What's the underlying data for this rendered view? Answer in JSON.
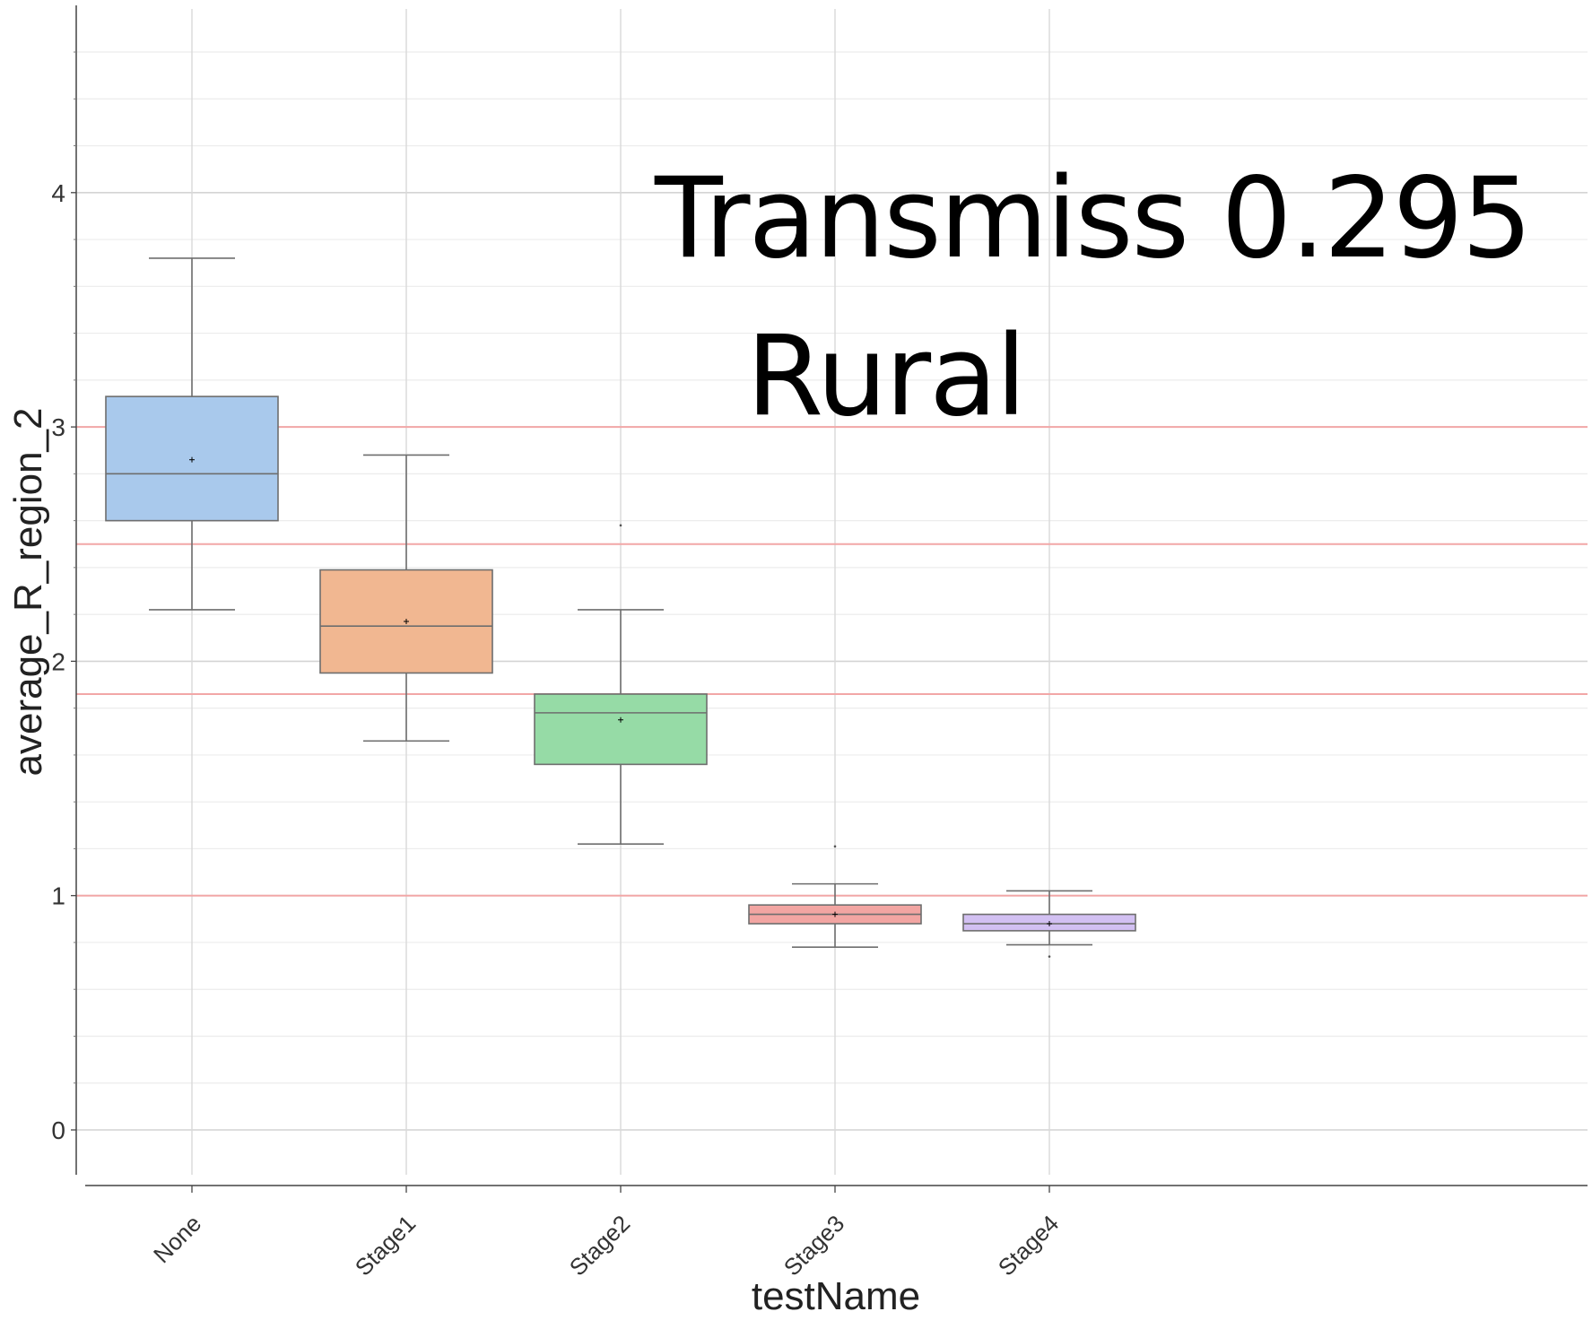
{
  "chart_data": {
    "type": "box",
    "xlabel": "testName",
    "ylabel": "average_R_region_2",
    "ylim": [
      -0.2,
      4.7
    ],
    "yticks": [
      0,
      1,
      2,
      3,
      4
    ],
    "categories": [
      "None",
      "Stage1",
      "Stage2",
      "Stage3",
      "Stage4"
    ],
    "boxes": [
      {
        "category": "None",
        "whisker_low": 2.22,
        "q1": 2.6,
        "median": 2.8,
        "q3": 3.13,
        "whisker_high": 3.72,
        "mean": 2.86,
        "outliers": [],
        "color": "#a9c9ec"
      },
      {
        "category": "Stage1",
        "whisker_low": 1.66,
        "q1": 1.95,
        "median": 2.15,
        "q3": 2.39,
        "whisker_high": 2.88,
        "mean": 2.17,
        "outliers": [],
        "color": "#f1b791"
      },
      {
        "category": "Stage2",
        "whisker_low": 1.22,
        "q1": 1.56,
        "median": 1.78,
        "q3": 1.86,
        "whisker_high": 2.22,
        "mean": 1.75,
        "outliers": [
          2.58
        ],
        "color": "#96dba6"
      },
      {
        "category": "Stage3",
        "whisker_low": 0.78,
        "q1": 0.88,
        "median": 0.92,
        "q3": 0.96,
        "whisker_high": 1.05,
        "mean": 0.92,
        "outliers": [
          1.21
        ],
        "color": "#f2a5a2"
      },
      {
        "category": "Stage4",
        "whisker_low": 0.79,
        "q1": 0.85,
        "median": 0.88,
        "q3": 0.92,
        "whisker_high": 1.02,
        "mean": 0.88,
        "outliers": [
          0.74
        ],
        "color": "#d2c0f2"
      }
    ],
    "reference_lines": [
      3.0,
      2.5,
      1.86,
      1.0
    ],
    "reference_line_color": "#f2a7a7",
    "annotations": [
      "Transmiss 0.295",
      "Rural"
    ]
  }
}
